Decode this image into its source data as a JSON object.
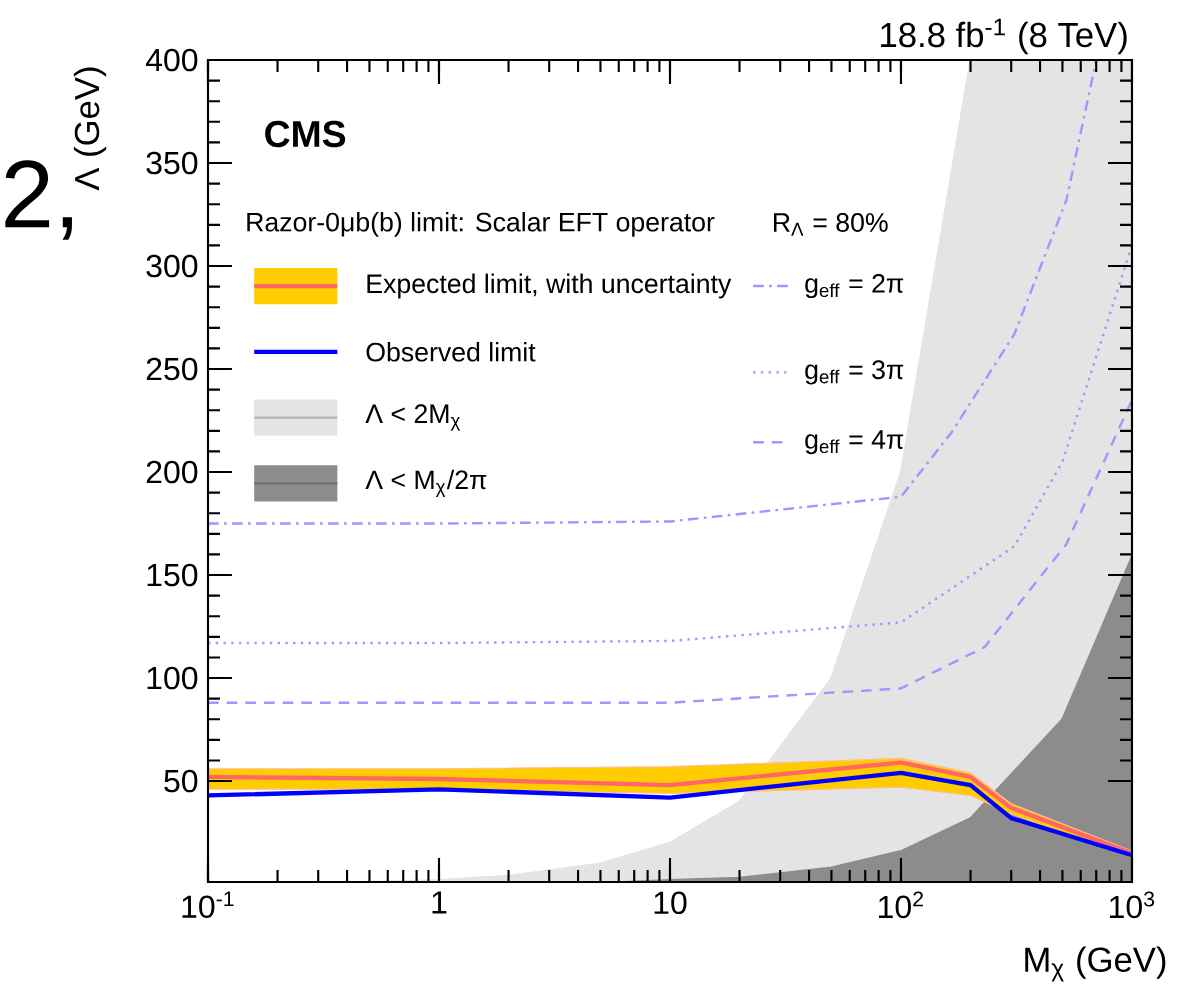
{
  "chart_data": {
    "type": "line",
    "xlabel": "M$_{χ}$ (GeV)",
    "ylabel": "Λ (GeV)",
    "legend_title": "Razor-0μb(b) limit: Scalar EFT operator",
    "annotations": [
      "CMS",
      "18.8 fb$^{-1}$ (8 TeV)",
      "R$_{Λ}$ = 80%",
      "2,"
    ],
    "log": "x",
    "legend": "top left",
    "xlim": [
      0.1,
      1000
    ],
    "ylim": [
      1,
      400
    ],
    "xticks": [
      {
        "value": 0.1,
        "label": "10$^{-1}$"
      },
      1,
      10,
      {
        "value": 100,
        "label": "10$^{2}$"
      },
      {
        "value": 1000,
        "label": "10$^{3}$"
      }
    ],
    "yticks": [
      50,
      100,
      150,
      200,
      250,
      300,
      350,
      400
    ],
    "series": [
      {
        "name": "Expected limit, with uncertainty",
        "color": "#ff6666",
        "x": [
          0.1,
          1,
          10,
          100,
          200,
          300,
          1000
        ],
        "values": [
          52,
          51,
          48,
          59,
          52,
          37,
          15
        ],
        "lower": [
          46,
          46,
          44,
          47,
          43,
          34,
          13
        ],
        "upper": [
          56,
          56,
          57,
          61,
          54,
          39,
          16
        ]
      },
      {
        "name": "Observed limit",
        "color": "#0000ff",
        "x": [
          0.1,
          1,
          10,
          100,
          200,
          300,
          1000
        ],
        "values": [
          43,
          46,
          42,
          54,
          48,
          32,
          14
        ]
      },
      {
        "name": "Λ < 2M$_{χ}$",
        "type": "area",
        "color": "#e4e4e4",
        "x": [
          0.5,
          1,
          2,
          5,
          10,
          20,
          50,
          100,
          200,
          1000
        ],
        "values": [
          1,
          2,
          4,
          10,
          20,
          40,
          100,
          200,
          400,
          400
        ]
      },
      {
        "name": "Λ < M$_{χ}$/2π",
        "type": "area",
        "color": "#8c8c8c",
        "x": [
          6.3,
          10,
          20,
          50,
          100,
          200,
          500,
          1000
        ],
        "values": [
          1,
          2,
          3,
          8,
          16,
          32,
          80,
          159
        ]
      },
      {
        "name": "g$_{eff}$ = 2π",
        "color": "#9999ff",
        "line_style": "dashdot",
        "x": [
          0.1,
          1,
          10,
          100,
          165,
          310,
          520,
          700
        ],
        "values": [
          175,
          175,
          176,
          188,
          219,
          267,
          332,
          400
        ]
      },
      {
        "name": "g$_{eff}$ = 3π",
        "color": "#9999ff",
        "line_style": "dotted",
        "x": [
          0.1,
          1,
          10,
          100,
          310,
          500,
          1000
        ],
        "values": [
          117,
          117,
          118,
          127,
          164,
          205,
          310
        ]
      },
      {
        "name": "g$_{eff}$ = 4π",
        "color": "#9999ff",
        "line_style": "dashed",
        "x": [
          0.1,
          1,
          10,
          100,
          230,
          520,
          1000
        ],
        "values": [
          88,
          88,
          88,
          95,
          115,
          165,
          235
        ]
      }
    ]
  }
}
